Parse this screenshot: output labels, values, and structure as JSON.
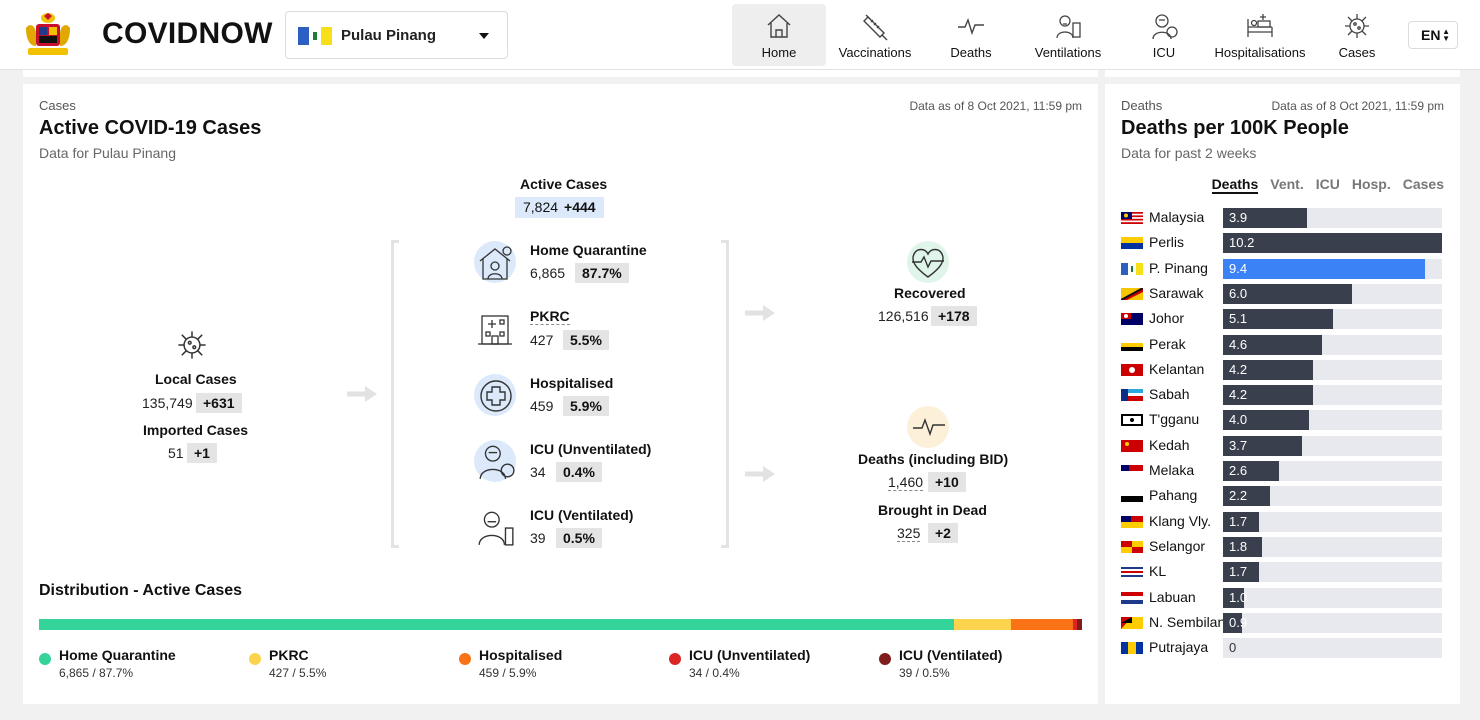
{
  "app": {
    "brand": "COVIDNOW",
    "state": "Pulau Pinang",
    "lang": "EN"
  },
  "nav": [
    {
      "label": "Home",
      "icon": "home-icon",
      "active": true
    },
    {
      "label": "Vaccinations",
      "icon": "syringe-icon"
    },
    {
      "label": "Deaths",
      "icon": "pulse-icon"
    },
    {
      "label": "Ventilations",
      "icon": "ventilator-icon"
    },
    {
      "label": "ICU",
      "icon": "icu-icon"
    },
    {
      "label": "Hospitalisations",
      "icon": "hospital-bed-icon"
    },
    {
      "label": "Cases",
      "icon": "virus-icon"
    }
  ],
  "main": {
    "eyebrow": "Cases",
    "as_of": "Data as of 8 Oct 2021, 11:59 pm",
    "title": "Active COVID-19 Cases",
    "subtitle": "Data for Pulau Pinang",
    "active": {
      "label": "Active Cases",
      "value": "7,824",
      "delta": "+444"
    },
    "local": {
      "label": "Local Cases",
      "value": "135,749",
      "delta": "+631"
    },
    "imported": {
      "label": "Imported Cases",
      "value": "51",
      "delta": "+1"
    },
    "categories": [
      {
        "label": "Home Quarantine",
        "value": "6,865",
        "pct": "87.7%"
      },
      {
        "label": "PKRC",
        "value": "427",
        "pct": "5.5%"
      },
      {
        "label": "Hospitalised",
        "value": "459",
        "pct": "5.9%"
      },
      {
        "label": "ICU (Unventilated)",
        "value": "34",
        "pct": "0.4%"
      },
      {
        "label": "ICU (Ventilated)",
        "value": "39",
        "pct": "0.5%"
      }
    ],
    "recovered": {
      "label": "Recovered",
      "value": "126,516",
      "delta": "+178"
    },
    "deaths": {
      "label": "Deaths (including BID)",
      "value": "1,460",
      "delta": "+10"
    },
    "bid": {
      "label": "Brought in Dead",
      "value": "325",
      "delta": "+2"
    },
    "distribution": {
      "title": "Distribution - Active Cases",
      "items": [
        {
          "name": "Home Quarantine",
          "value": "6,865 / 87.7%",
          "share": 87.7,
          "color": "#34d399"
        },
        {
          "name": "PKRC",
          "value": "427 / 5.5%",
          "share": 5.5,
          "color": "#fcd34d"
        },
        {
          "name": "Hospitalised",
          "value": "459 / 5.9%",
          "share": 5.9,
          "color": "#f97316"
        },
        {
          "name": "ICU (Unventilated)",
          "value": "34 / 0.4%",
          "share": 0.4,
          "color": "#dc2626"
        },
        {
          "name": "ICU (Ventilated)",
          "value": "39 / 0.5%",
          "share": 0.5,
          "color": "#7f1d1d"
        }
      ]
    }
  },
  "side": {
    "eyebrow": "Deaths",
    "as_of": "Data as of 8 Oct 2021, 11:59 pm",
    "title": "Deaths per 100K People",
    "subtitle": "Data for past 2 weeks",
    "tabs": [
      {
        "label": "Deaths",
        "active": true
      },
      {
        "label": "Vent."
      },
      {
        "label": "ICU"
      },
      {
        "label": "Hosp."
      },
      {
        "label": "Cases"
      }
    ],
    "max": 10.2,
    "highlight": "P. Pinang",
    "rows": [
      {
        "name": "Malaysia",
        "value": 3.9,
        "display": "3.9"
      },
      {
        "name": "Perlis",
        "value": 10.2,
        "display": "10.2"
      },
      {
        "name": "P. Pinang",
        "value": 9.4,
        "display": "9.4"
      },
      {
        "name": "Sarawak",
        "value": 6.0,
        "display": "6.0"
      },
      {
        "name": "Johor",
        "value": 5.1,
        "display": "5.1"
      },
      {
        "name": "Perak",
        "value": 4.6,
        "display": "4.6"
      },
      {
        "name": "Kelantan",
        "value": 4.2,
        "display": "4.2"
      },
      {
        "name": "Sabah",
        "value": 4.2,
        "display": "4.2"
      },
      {
        "name": "T'gganu",
        "value": 4.0,
        "display": "4.0"
      },
      {
        "name": "Kedah",
        "value": 3.7,
        "display": "3.7"
      },
      {
        "name": "Melaka",
        "value": 2.6,
        "display": "2.6"
      },
      {
        "name": "Pahang",
        "value": 2.2,
        "display": "2.2"
      },
      {
        "name": "Klang Vly.",
        "value": 1.7,
        "display": "1.7"
      },
      {
        "name": "Selangor",
        "value": 1.8,
        "display": "1.8"
      },
      {
        "name": "KL",
        "value": 1.7,
        "display": "1.7"
      },
      {
        "name": "Labuan",
        "value": 1.0,
        "display": "1.0"
      },
      {
        "name": "N. Sembilan",
        "value": 0.9,
        "display": "0.9"
      },
      {
        "name": "Putrajaya",
        "value": 0,
        "display": "0"
      }
    ]
  }
}
